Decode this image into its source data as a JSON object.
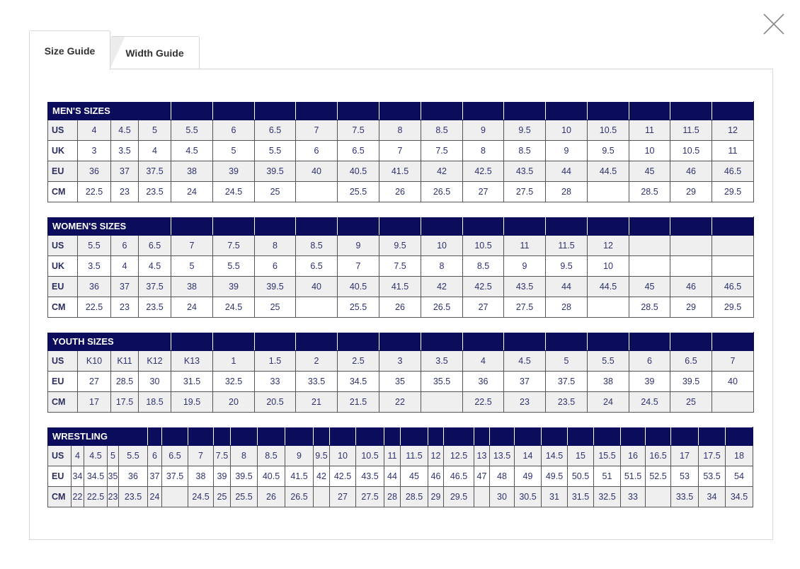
{
  "tabs": [
    {
      "label": "Size Guide",
      "active": true
    },
    {
      "label": "Width Guide",
      "active": false
    }
  ],
  "colors": {
    "header_bg": "#0b0c5c",
    "text": "#2d3270",
    "row_alt": "#efefef"
  },
  "tables": [
    {
      "title": "MEN'S SIZES",
      "rows": [
        {
          "label": "US",
          "cells": [
            "4",
            "4.5",
            "5",
            "5.5",
            "6",
            "6.5",
            "7",
            "7.5",
            "8",
            "8.5",
            "9",
            "9.5",
            "10",
            "10.5",
            "11",
            "11.5",
            "12"
          ]
        },
        {
          "label": "UK",
          "cells": [
            "3",
            "3.5",
            "4",
            "4.5",
            "5",
            "5.5",
            "6",
            "6.5",
            "7",
            "7.5",
            "8",
            "8.5",
            "9",
            "9.5",
            "10",
            "10.5",
            "11"
          ]
        },
        {
          "label": "EU",
          "cells": [
            "36",
            "37",
            "37.5",
            "38",
            "39",
            "39.5",
            "40",
            "40.5",
            "41.5",
            "42",
            "42.5",
            "43.5",
            "44",
            "44.5",
            "45",
            "46",
            "46.5"
          ]
        },
        {
          "label": "CM",
          "cells": [
            "22.5",
            "23",
            "23.5",
            "24",
            "24.5",
            "25",
            "",
            "25.5",
            "26",
            "26.5",
            "27",
            "27.5",
            "28",
            "",
            "28.5",
            "29",
            "29.5"
          ]
        }
      ]
    },
    {
      "title": "WOMEN'S SIZES",
      "rows": [
        {
          "label": "US",
          "cells": [
            "5.5",
            "6",
            "6.5",
            "7",
            "7.5",
            "8",
            "8.5",
            "9",
            "9.5",
            "10",
            "10.5",
            "11",
            "11.5",
            "12",
            "",
            "",
            ""
          ]
        },
        {
          "label": "UK",
          "cells": [
            "3.5",
            "4",
            "4.5",
            "5",
            "5.5",
            "6",
            "6.5",
            "7",
            "7.5",
            "8",
            "8.5",
            "9",
            "9.5",
            "10",
            "",
            "",
            ""
          ]
        },
        {
          "label": "EU",
          "cells": [
            "36",
            "37",
            "37.5",
            "38",
            "39",
            "39.5",
            "40",
            "40.5",
            "41.5",
            "42",
            "42.5",
            "43.5",
            "44",
            "44.5",
            "45",
            "46",
            "46.5"
          ]
        },
        {
          "label": "CM",
          "cells": [
            "22.5",
            "23",
            "23.5",
            "24",
            "24.5",
            "25",
            "",
            "25.5",
            "26",
            "26.5",
            "27",
            "27.5",
            "28",
            "",
            "28.5",
            "29",
            "29.5"
          ]
        }
      ]
    },
    {
      "title": "YOUTH SIZES",
      "rows": [
        {
          "label": "US",
          "cells": [
            "K10",
            "K11",
            "K12",
            "K13",
            "1",
            "1.5",
            "2",
            "2.5",
            "3",
            "3.5",
            "4",
            "4.5",
            "5",
            "5.5",
            "6",
            "6.5",
            "7"
          ]
        },
        {
          "label": "EU",
          "cells": [
            "27",
            "28.5",
            "30",
            "31.5",
            "32.5",
            "33",
            "33.5",
            "34.5",
            "35",
            "35.5",
            "36",
            "37",
            "37.5",
            "38",
            "39",
            "39.5",
            "40"
          ]
        },
        {
          "label": "CM",
          "cells": [
            "17",
            "17.5",
            "18.5",
            "19.5",
            "20",
            "20.5",
            "21",
            "21.5",
            "22",
            "",
            "22.5",
            "23",
            "23.5",
            "24",
            "24.5",
            "25",
            ""
          ]
        }
      ]
    },
    {
      "title": "WRESTLING",
      "rows": [
        {
          "label": "US",
          "cells": [
            "4",
            "4.5",
            "5",
            "5.5",
            "6",
            "6.5",
            "7",
            "7.5",
            "8",
            "8.5",
            "9",
            "9.5",
            "10",
            "10.5",
            "11",
            "11.5",
            "12",
            "12.5",
            "13",
            "13.5",
            "14",
            "14.5",
            "15",
            "15.5",
            "16",
            "16.5",
            "17",
            "17.5",
            "18"
          ]
        },
        {
          "label": "EU",
          "cells": [
            "34",
            "34.5",
            "35",
            "36",
            "37",
            "37.5",
            "38",
            "39",
            "39.5",
            "40.5",
            "41.5",
            "42",
            "42.5",
            "43.5",
            "44",
            "45",
            "46",
            "46.5",
            "47",
            "48",
            "49",
            "49.5",
            "50.5",
            "51",
            "51.5",
            "52.5",
            "53",
            "53.5",
            "54"
          ]
        },
        {
          "label": "CM",
          "cells": [
            "22",
            "22.5",
            "23",
            "23.5",
            "24",
            "",
            "24.5",
            "25",
            "25.5",
            "26",
            "26.5",
            "",
            "27",
            "27.5",
            "28",
            "28.5",
            "29",
            "29.5",
            "",
            "30",
            "30.5",
            "31",
            "31.5",
            "32.5",
            "33",
            "",
            "33.5",
            "34",
            "34.5"
          ]
        }
      ]
    }
  ]
}
